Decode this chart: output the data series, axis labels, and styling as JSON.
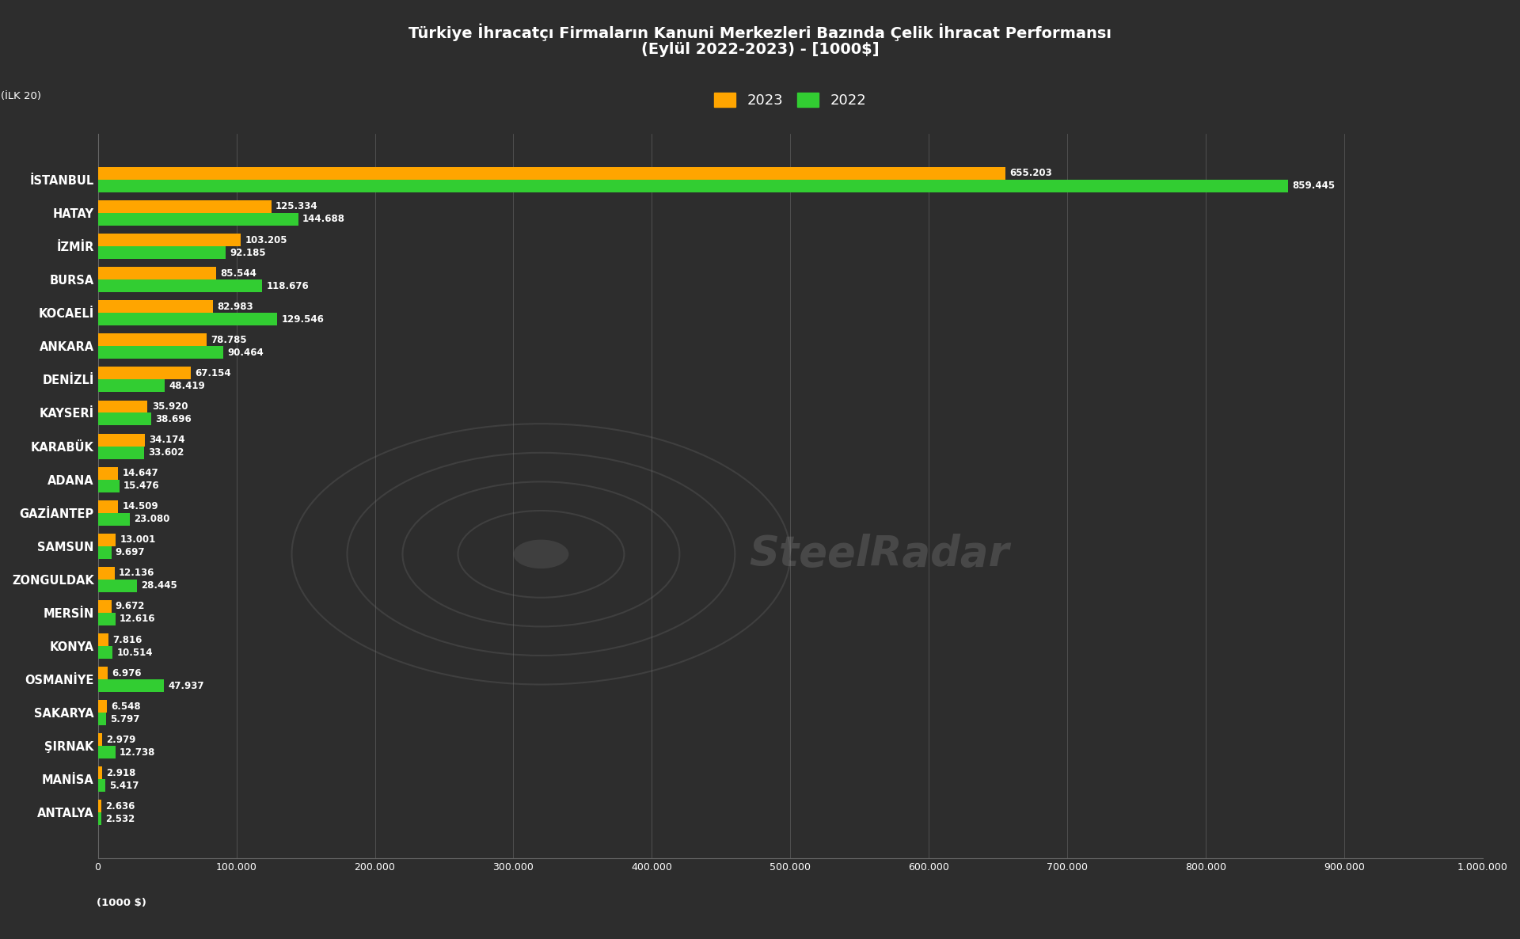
{
  "title_line1": "Türkiye İhracatçı Firmaların Kanuni Merkezleri Bazında Çelik İhracat Performansı",
  "title_line2": "(Eylül 2022-2023) - [1000$]",
  "subtitle": "(İLK 20)",
  "xlabel": "(1000 $)",
  "legend_2023": "2023",
  "legend_2022": "2022",
  "color_2023": "#FFA500",
  "color_2022": "#32CD32",
  "background_color": "#2d2d2d",
  "text_color": "#ffffff",
  "cities": [
    "İSTANBUL",
    "HATAY",
    "İZMİR",
    "BURSA",
    "KOCAELİ",
    "ANKARA",
    "DENİZLİ",
    "KAYSERİ",
    "KARABÜK",
    "ADANA",
    "GAZİANTEP",
    "SAMSUN",
    "ZONGULDAK",
    "MERSİN",
    "KONYA",
    "OSMANİYE",
    "SAKARYA",
    "ŞIRNAK",
    "MANİSA",
    "ANTALYA"
  ],
  "values_2023": [
    655203,
    125334,
    103205,
    85544,
    82983,
    78785,
    67154,
    35920,
    34174,
    14647,
    14509,
    13001,
    12136,
    9672,
    7816,
    6976,
    6548,
    2979,
    2918,
    2636
  ],
  "values_2022": [
    859445,
    144688,
    92185,
    118676,
    129546,
    90464,
    48419,
    38696,
    33602,
    15476,
    23080,
    9697,
    28445,
    12616,
    10514,
    47937,
    5797,
    12738,
    5417,
    2532
  ],
  "xlim": [
    0,
    1000000
  ],
  "xticks": [
    0,
    100000,
    200000,
    300000,
    400000,
    500000,
    600000,
    700000,
    800000,
    900000,
    1000000
  ],
  "xtick_labels": [
    "0",
    "100.000",
    "200.000",
    "300.000",
    "400.000",
    "500.000",
    "600.000",
    "700.000",
    "800.000",
    "900.000",
    "1.000.000"
  ]
}
